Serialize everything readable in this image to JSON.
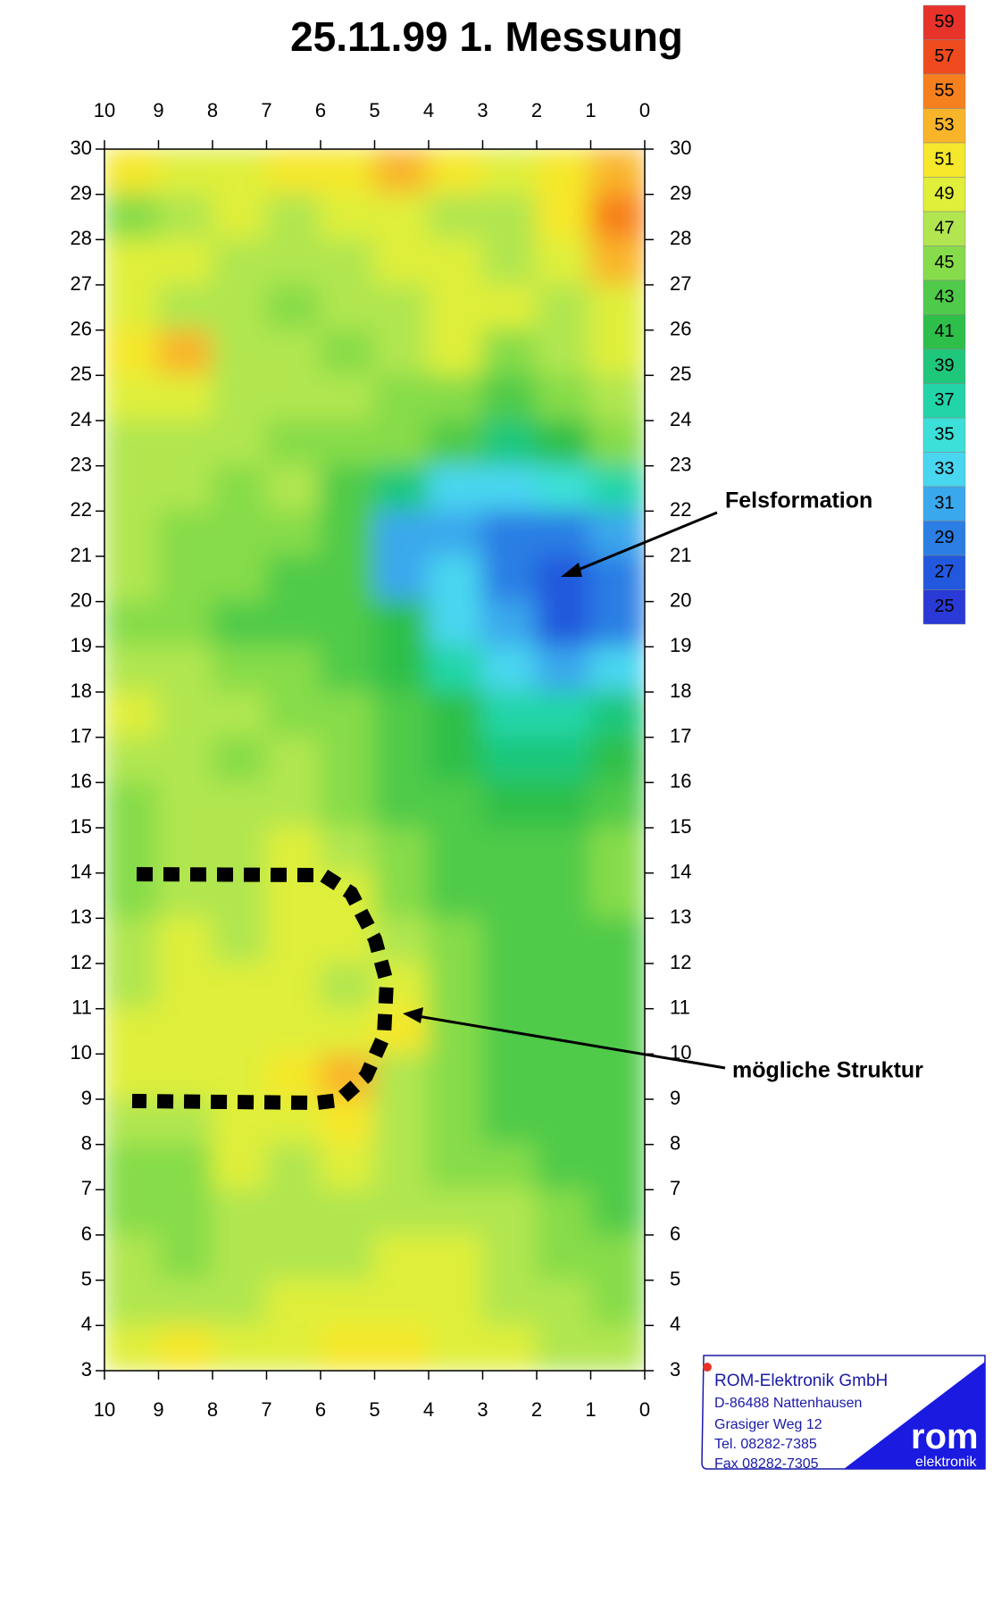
{
  "chart_data": {
    "type": "heatmap",
    "title": "25.11.99 1. Messung",
    "x": [
      9.5,
      8.5,
      7.5,
      6.5,
      5.5,
      4.5,
      3.5,
      2.5,
      1.5,
      0.5
    ],
    "y": [
      29.5,
      28.5,
      27.5,
      26.5,
      25.5,
      24.5,
      23.5,
      22.5,
      21.5,
      20.5,
      19.5,
      18.5,
      17.5,
      16.5,
      15.5,
      14.5,
      13.5,
      12.5,
      11.5,
      10.5,
      9.5,
      8.5,
      7.5,
      6.5,
      5.5,
      4.5,
      3.5
    ],
    "z": [
      [
        51,
        49,
        49,
        51,
        51,
        53,
        51,
        49,
        51,
        53
      ],
      [
        45,
        47,
        49,
        47,
        49,
        49,
        47,
        47,
        51,
        55
      ],
      [
        49,
        49,
        47,
        47,
        47,
        49,
        49,
        47,
        49,
        53
      ],
      [
        49,
        47,
        47,
        45,
        47,
        47,
        49,
        49,
        47,
        49
      ],
      [
        51,
        53,
        47,
        47,
        45,
        47,
        49,
        45,
        47,
        49
      ],
      [
        49,
        49,
        47,
        47,
        47,
        45,
        45,
        43,
        45,
        47
      ],
      [
        47,
        47,
        47,
        45,
        45,
        45,
        43,
        39,
        41,
        45
      ],
      [
        47,
        47,
        45,
        47,
        43,
        39,
        33,
        33,
        35,
        37
      ],
      [
        47,
        45,
        45,
        45,
        43,
        31,
        31,
        29,
        29,
        31
      ],
      [
        47,
        45,
        45,
        43,
        43,
        31,
        33,
        29,
        27,
        29
      ],
      [
        45,
        45,
        43,
        43,
        43,
        41,
        33,
        31,
        27,
        29
      ],
      [
        47,
        47,
        45,
        45,
        43,
        41,
        37,
        33,
        31,
        33
      ],
      [
        49,
        47,
        47,
        45,
        45,
        43,
        41,
        37,
        37,
        39
      ],
      [
        47,
        47,
        45,
        47,
        45,
        43,
        41,
        39,
        39,
        41
      ],
      [
        45,
        47,
        47,
        47,
        45,
        43,
        43,
        41,
        41,
        43
      ],
      [
        45,
        47,
        47,
        49,
        47,
        45,
        43,
        43,
        43,
        45
      ],
      [
        45,
        47,
        47,
        49,
        49,
        45,
        43,
        43,
        43,
        45
      ],
      [
        47,
        49,
        47,
        49,
        49,
        47,
        45,
        43,
        43,
        43
      ],
      [
        47,
        49,
        49,
        49,
        47,
        49,
        45,
        43,
        43,
        43
      ],
      [
        49,
        49,
        49,
        49,
        49,
        51,
        45,
        43,
        43,
        43
      ],
      [
        49,
        49,
        49,
        51,
        53,
        47,
        45,
        43,
        43,
        43
      ],
      [
        47,
        47,
        49,
        49,
        51,
        47,
        45,
        43,
        43,
        43
      ],
      [
        45,
        45,
        49,
        47,
        49,
        47,
        45,
        45,
        43,
        43
      ],
      [
        45,
        45,
        47,
        47,
        47,
        47,
        47,
        47,
        45,
        43
      ],
      [
        47,
        45,
        47,
        47,
        47,
        49,
        49,
        47,
        45,
        45
      ],
      [
        47,
        47,
        47,
        49,
        49,
        49,
        49,
        47,
        47,
        45
      ],
      [
        49,
        51,
        49,
        49,
        51,
        51,
        49,
        49,
        47,
        47
      ]
    ],
    "xlim": [
      10,
      0
    ],
    "xticks": [
      0,
      1,
      2,
      3,
      4,
      5,
      6,
      7,
      8,
      9,
      10
    ],
    "ylim": [
      3,
      30
    ],
    "yticks": [
      3,
      4,
      5,
      6,
      7,
      8,
      9,
      10,
      11,
      12,
      13,
      14,
      15,
      16,
      17,
      18,
      19,
      20,
      21,
      22,
      23,
      24,
      25,
      26,
      27,
      28,
      29,
      30
    ],
    "legend": {
      "levels": [
        59,
        57,
        55,
        53,
        51,
        49,
        47,
        45,
        43,
        41,
        39,
        37,
        35,
        33,
        31,
        29,
        27,
        25
      ],
      "colors": [
        "#e8332a",
        "#f04a1f",
        "#f7801e",
        "#f9b52a",
        "#f5e72b",
        "#dfef3a",
        "#b1e650",
        "#86dc4a",
        "#4fca4a",
        "#2dbf4a",
        "#1fc77b",
        "#22d5a8",
        "#3ce0d8",
        "#48d6f0",
        "#3aa8ec",
        "#2a7ee4",
        "#2258dd",
        "#2a3ad6"
      ]
    },
    "annotations": [
      {
        "text": "Felsformation"
      },
      {
        "text": "mögliche Struktur"
      }
    ]
  },
  "company": {
    "name": "ROM-Elektronik GmbH",
    "city": "D-86488 Nattenhausen",
    "street": "Grasiger Weg 12",
    "phone": "Tel. 08282-7385",
    "fax": "Fax 08282-7305",
    "brand": "rom",
    "brand_sub": "elektronik"
  }
}
